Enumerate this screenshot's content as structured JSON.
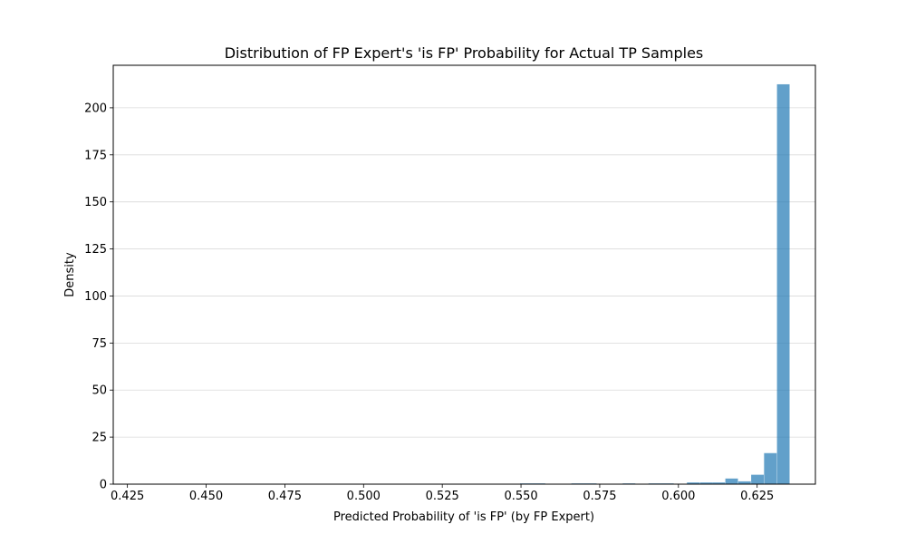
{
  "chart_data": {
    "type": "bar",
    "title": "Distribution of FP Expert's 'is FP' Probability for Actual TP Samples",
    "xlabel": "Predicted Probability of 'is FP' (by FP Expert)",
    "ylabel": "Density",
    "xlim": [
      0.4205,
      0.6435
    ],
    "ylim": [
      0,
      222.6
    ],
    "xticks": [
      "0.425",
      "0.450",
      "0.475",
      "0.500",
      "0.525",
      "0.550",
      "0.575",
      "0.600",
      "0.625"
    ],
    "yticks": [
      "0",
      "25",
      "50",
      "75",
      "100",
      "125",
      "150",
      "175",
      "200"
    ],
    "grid": "horizontal",
    "bar_color": "#1f77b4",
    "bar_alpha": 0.7,
    "bin_width": 0.004,
    "bins": [
      {
        "x0": 0.5497,
        "y": 0.4
      },
      {
        "x0": 0.5537,
        "y": 0.4
      },
      {
        "x0": 0.566,
        "y": 0.4
      },
      {
        "x0": 0.57,
        "y": 0.4
      },
      {
        "x0": 0.5823,
        "y": 0.4
      },
      {
        "x0": 0.5905,
        "y": 0.4
      },
      {
        "x0": 0.5945,
        "y": 0.4
      },
      {
        "x0": 0.6027,
        "y": 0.9
      },
      {
        "x0": 0.6068,
        "y": 0.9
      },
      {
        "x0": 0.6108,
        "y": 0.9
      },
      {
        "x0": 0.6149,
        "y": 3.0
      },
      {
        "x0": 0.619,
        "y": 1.5
      },
      {
        "x0": 0.6231,
        "y": 5.0
      },
      {
        "x0": 0.6272,
        "y": 16.5
      },
      {
        "x0": 0.6313,
        "y": 212.5
      }
    ]
  }
}
